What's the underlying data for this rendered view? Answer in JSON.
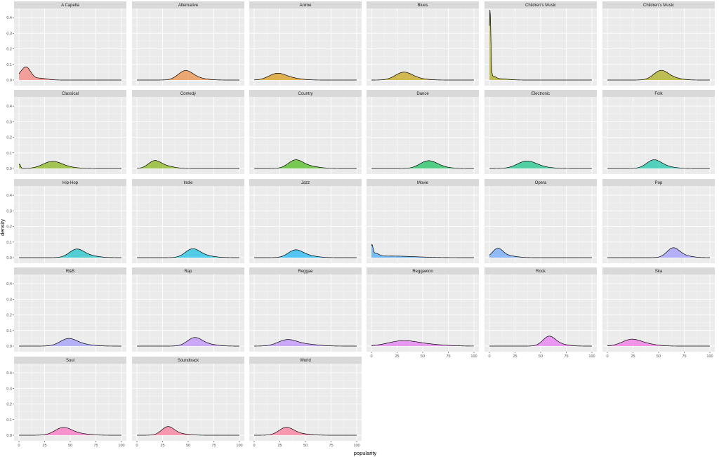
{
  "chart_data": {
    "type": "area",
    "subtype": "faceted density",
    "xlabel": "popularity",
    "ylabel": "density",
    "xlim": [
      0,
      100
    ],
    "ylim": [
      0,
      0.45
    ],
    "x_ticks": [
      0,
      25,
      50,
      75,
      100
    ],
    "y_ticks": [
      0.0,
      0.1,
      0.2,
      0.3,
      0.4
    ],
    "y_tick_labels": [
      "0.0",
      "0.1",
      "0.2",
      "0.3",
      "0.4"
    ],
    "x_tick_labels": [
      "0",
      "25",
      "50",
      "75",
      "100"
    ],
    "grid": true,
    "legend": "none",
    "panel_background": "#ebebeb",
    "strip_background": "#d9d9d9",
    "facets": [
      {
        "label": "A Capella",
        "color": "#F8766D",
        "peaks": [
          [
            3,
            5,
            0.04
          ],
          [
            8,
            4,
            0.055
          ],
          [
            20,
            7,
            0.012
          ]
        ]
      },
      {
        "label": "Alternative",
        "color": "#EA8331",
        "peaks": [
          [
            47,
            7,
            0.055
          ],
          [
            58,
            9,
            0.012
          ]
        ]
      },
      {
        "label": "Anime",
        "color": "#D89000",
        "peaks": [
          [
            22,
            8,
            0.038
          ],
          [
            35,
            10,
            0.012
          ]
        ]
      },
      {
        "label": "Blues",
        "color": "#C09B00",
        "peaks": [
          [
            31,
            8,
            0.045
          ],
          [
            42,
            10,
            0.01
          ]
        ]
      },
      {
        "label": "Children's Music",
        "color": "#A3A500",
        "peaks": [
          [
            0.6,
            0.8,
            0.44
          ],
          [
            3,
            3,
            0.02
          ],
          [
            10,
            8,
            0.008
          ]
        ]
      },
      {
        "label": "Children’s Music",
        "color": "#A3A500",
        "peaks": [
          [
            52,
            7,
            0.058
          ],
          [
            64,
            8,
            0.012
          ]
        ]
      },
      {
        "label": "Classical",
        "color": "#7CAE00",
        "peaks": [
          [
            0.5,
            1,
            0.028
          ],
          [
            32,
            9,
            0.042
          ],
          [
            45,
            10,
            0.008
          ]
        ]
      },
      {
        "label": "Comedy",
        "color": "#7CAE00",
        "peaks": [
          [
            17,
            6,
            0.045
          ],
          [
            28,
            8,
            0.015
          ]
        ]
      },
      {
        "label": "Country",
        "color": "#39B600",
        "peaks": [
          [
            40,
            7,
            0.048
          ],
          [
            52,
            10,
            0.015
          ]
        ]
      },
      {
        "label": "Dance",
        "color": "#00BB4E",
        "peaks": [
          [
            55,
            8,
            0.045
          ],
          [
            66,
            9,
            0.01
          ]
        ]
      },
      {
        "label": "Electronic",
        "color": "#00BF7D",
        "peaks": [
          [
            36,
            9,
            0.045
          ],
          [
            50,
            10,
            0.008
          ]
        ]
      },
      {
        "label": "Folk",
        "color": "#00C1A3",
        "peaks": [
          [
            45,
            7,
            0.05
          ],
          [
            56,
            9,
            0.012
          ]
        ]
      },
      {
        "label": "Hip-Hop",
        "color": "#00BFC4",
        "peaks": [
          [
            56,
            7,
            0.05
          ],
          [
            68,
            9,
            0.012
          ]
        ]
      },
      {
        "label": "Indie",
        "color": "#00BAE0",
        "peaks": [
          [
            54,
            7,
            0.052
          ],
          [
            66,
            9,
            0.012
          ]
        ]
      },
      {
        "label": "Jazz",
        "color": "#00B0F6",
        "peaks": [
          [
            40,
            7,
            0.045
          ],
          [
            52,
            9,
            0.012
          ]
        ]
      },
      {
        "label": "Movie",
        "color": "#35A2FF",
        "peaks": [
          [
            0.5,
            1,
            0.06
          ],
          [
            3,
            4,
            0.022
          ],
          [
            20,
            22,
            0.01
          ]
        ]
      },
      {
        "label": "Opera",
        "color": "#619CFF",
        "peaks": [
          [
            8,
            5,
            0.055
          ],
          [
            18,
            8,
            0.012
          ]
        ]
      },
      {
        "label": "Pop",
        "color": "#9590FF",
        "peaks": [
          [
            64,
            6,
            0.058
          ],
          [
            74,
            8,
            0.012
          ]
        ]
      },
      {
        "label": "R&B",
        "color": "#9590FF",
        "peaks": [
          [
            48,
            8,
            0.045
          ],
          [
            62,
            10,
            0.01
          ]
        ]
      },
      {
        "label": "Rap",
        "color": "#B983FF",
        "peaks": [
          [
            56,
            7,
            0.05
          ],
          [
            68,
            9,
            0.012
          ]
        ]
      },
      {
        "label": "Reggae",
        "color": "#B983FF",
        "peaks": [
          [
            32,
            9,
            0.038
          ],
          [
            50,
            12,
            0.012
          ]
        ]
      },
      {
        "label": "Reggaeton",
        "color": "#E76BF3",
        "peaks": [
          [
            30,
            14,
            0.032
          ],
          [
            55,
            16,
            0.01
          ]
        ]
      },
      {
        "label": "Rock",
        "color": "#E76BF3",
        "peaks": [
          [
            58,
            6,
            0.058
          ],
          [
            68,
            8,
            0.012
          ]
        ]
      },
      {
        "label": "Ska",
        "color": "#F564E3",
        "peaks": [
          [
            23,
            9,
            0.04
          ],
          [
            38,
            10,
            0.012
          ]
        ]
      },
      {
        "label": "Soul",
        "color": "#FF62BC",
        "peaks": [
          [
            43,
            8,
            0.047
          ],
          [
            58,
            10,
            0.01
          ]
        ]
      },
      {
        "label": "Soundtrack",
        "color": "#FF6C91",
        "peaks": [
          [
            30,
            6,
            0.05
          ],
          [
            40,
            9,
            0.01
          ]
        ]
      },
      {
        "label": "World",
        "color": "#FF6C91",
        "peaks": [
          [
            31,
            7,
            0.046
          ],
          [
            43,
            10,
            0.01
          ]
        ]
      }
    ]
  }
}
